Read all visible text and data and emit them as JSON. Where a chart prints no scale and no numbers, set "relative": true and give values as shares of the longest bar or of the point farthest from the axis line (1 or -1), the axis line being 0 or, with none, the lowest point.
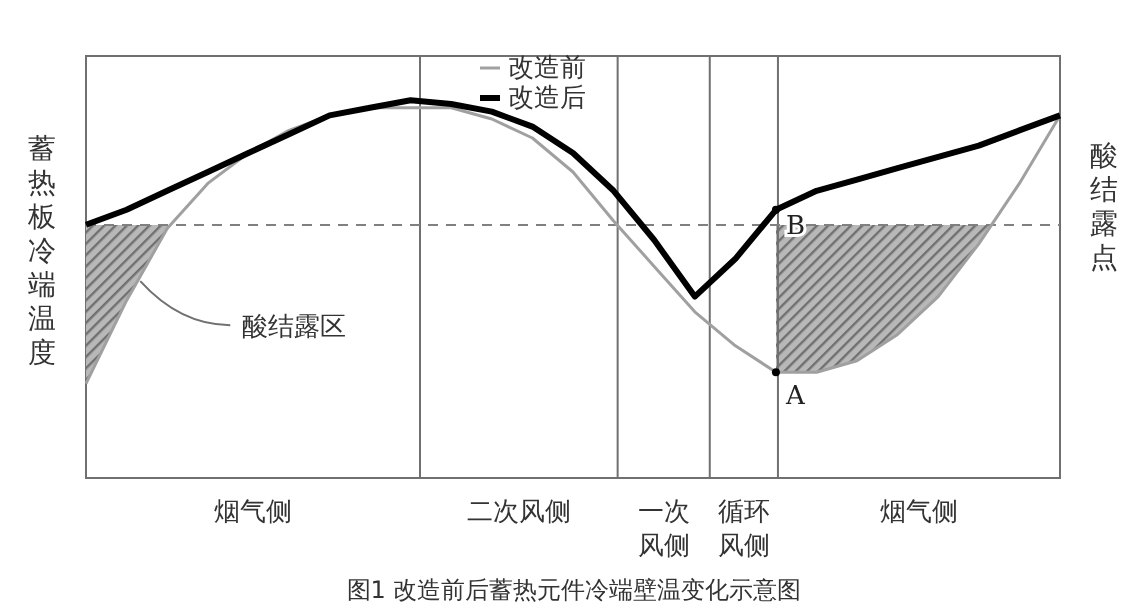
{
  "chart_data": {
    "type": "line",
    "relative": true,
    "ylabel": "蓄热板冷端温度",
    "categories": [
      null,
      null,
      null,
      null,
      null,
      null,
      null,
      null,
      null,
      null,
      null,
      null,
      null,
      null,
      null,
      null,
      null,
      null,
      null,
      null,
      null,
      null,
      null,
      null,
      null
    ],
    "series": [
      {
        "name": "改造前",
        "color": "#a0a0a0",
        "values": [
          0.25,
          0.47,
          0.66,
          0.78,
          0.86,
          0.92,
          0.96,
          0.98,
          0.98,
          0.98,
          0.95,
          0.9,
          0.81,
          0.68,
          0.56,
          0.44,
          0.35,
          0.28,
          0.28,
          0.31,
          0.38,
          0.48,
          0.62,
          0.78,
          0.96
        ]
      },
      {
        "name": "改造后",
        "color": "#000000",
        "values": [
          0.67,
          0.71,
          0.76,
          0.81,
          0.86,
          0.91,
          0.96,
          0.98,
          1.0,
          0.99,
          0.97,
          0.93,
          0.86,
          0.76,
          0.63,
          0.48,
          0.58,
          0.71,
          0.76,
          0.79,
          0.82,
          0.85,
          0.88,
          0.92,
          0.96
        ]
      }
    ],
    "ref_lines": [
      {
        "axis": "y",
        "value": 0.67,
        "label": "酸结露点",
        "color": "#808080",
        "line_style": "dashed"
      }
    ],
    "annotations": [
      "酸结露区",
      "A",
      "B",
      "烟气侧",
      "二次风侧",
      "一次风侧",
      "循环风侧",
      "烟气侧",
      "图1 改造前后蓄热元件冷端壁温变化示意图"
    ],
    "legend": "top",
    "marker": "none",
    "line_style": "solid"
  }
}
